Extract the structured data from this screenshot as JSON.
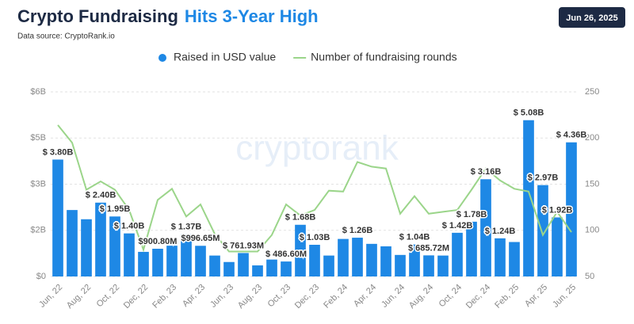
{
  "chart_data": {
    "type": "combo",
    "title": "Crypto Fundraising",
    "title_highlight": "Hits 3-Year High",
    "subtitle": "Data source: CryptoRank.io",
    "date": "Jun 26, 2025",
    "watermark": "cryptorank",
    "categories": [
      "Jun, 22",
      null,
      "Aug, 22",
      null,
      "Oct, 22",
      null,
      "Dec, 22",
      null,
      "Feb, 23",
      null,
      "Apr, 23",
      null,
      "Jun, 23",
      null,
      "Aug, 23",
      null,
      "Oct, 23",
      null,
      "Dec, 23",
      null,
      "Feb, 24",
      null,
      "Apr, 24",
      null,
      "Jun, 24",
      null,
      "Aug, 24",
      null,
      "Oct, 24",
      null,
      "Dec, 24",
      null,
      "Feb, 25",
      null,
      "Apr, 25",
      null,
      "Jun, 25"
    ],
    "series": [
      {
        "name": "Raised in USD value",
        "type": "bar",
        "color": "#1e88e5",
        "values": [
          3.8,
          2.16,
          1.86,
          2.4,
          1.95,
          1.4,
          0.8,
          0.9008,
          1.0,
          1.37,
          0.99665,
          0.68,
          0.47,
          0.76193,
          0.36,
          0.55,
          0.4866,
          1.68,
          1.03,
          0.68,
          1.22,
          1.26,
          1.06,
          0.98,
          0.7,
          1.04,
          0.68572,
          0.68,
          1.42,
          1.78,
          3.16,
          1.24,
          1.12,
          5.08,
          2.97,
          1.92,
          4.36
        ],
        "value_labels": [
          "$ 3.80B",
          null,
          null,
          "$ 2.40B",
          "$ 1.95B",
          "$ 1.40B",
          null,
          "$900.80M",
          null,
          "$ 1.37B",
          "$996.65M",
          null,
          null,
          "$ 761.93M",
          null,
          null,
          "$ 486.60M",
          "$ 1.68B",
          "$ 1.03B",
          null,
          null,
          "$ 1.26B",
          null,
          null,
          null,
          "$ 1.04B",
          "$ 685.72M",
          null,
          "$ 1.42B",
          "$ 1.78B",
          "$ 3.16B",
          "$ 1.24B",
          null,
          "$ 5.08B",
          "$ 2.97B",
          "$ 1.92B",
          "$ 4.36B"
        ]
      },
      {
        "name": "Number of fundraising rounds",
        "type": "line",
        "axis": "y2",
        "color": "#9bd58a",
        "values": [
          214,
          195,
          144,
          153,
          144,
          122,
          79,
          133,
          145,
          115,
          128,
          96,
          77,
          77,
          77,
          95,
          128,
          116,
          122,
          143,
          142,
          174,
          169,
          167,
          118,
          137,
          118,
          120,
          122,
          144,
          167,
          154,
          145,
          142,
          95,
          120,
          98
        ]
      }
    ],
    "ylim": [
      0,
      6
    ],
    "yticks": [
      {
        "value": 0,
        "label": "$0"
      },
      {
        "value": 1.5,
        "label": "$2B"
      },
      {
        "value": 3,
        "label": "$3B"
      },
      {
        "value": 4.5,
        "label": "$5B"
      },
      {
        "value": 6,
        "label": "$6B"
      }
    ],
    "y2lim": [
      50,
      250
    ],
    "y2ticks": [
      50,
      100,
      150,
      200,
      250
    ],
    "grid": true
  }
}
